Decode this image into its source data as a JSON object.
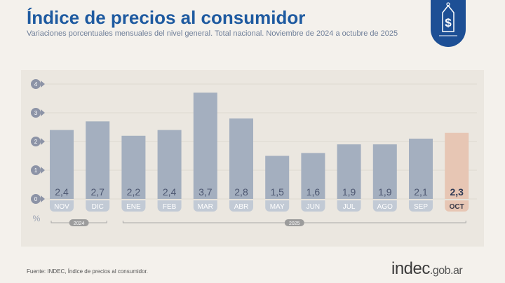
{
  "header": {
    "title": "Índice de precios al consumidor",
    "subtitle": "Variaciones porcentuales mensuales del nivel general. Total nacional. Noviembre de 2024 a octubre de 2025"
  },
  "badge": {
    "icon": "price-tag-dollar-icon",
    "color": "#1d4f95"
  },
  "chart_data": {
    "type": "bar",
    "categories": [
      "NOV",
      "DIC",
      "ENE",
      "FEB",
      "MAR",
      "ABR",
      "MAY",
      "JUN",
      "JUL",
      "AGO",
      "SEP",
      "OCT"
    ],
    "values": [
      2.4,
      2.7,
      2.2,
      2.4,
      3.7,
      2.8,
      1.5,
      1.6,
      1.9,
      1.9,
      2.1,
      2.3
    ],
    "data_labels": [
      "2,4",
      "2,7",
      "2,2",
      "2,4",
      "3,7",
      "2,8",
      "1,5",
      "1,6",
      "1,9",
      "1,9",
      "2,1",
      "2,3"
    ],
    "yticks": [
      "0",
      "1",
      "2",
      "3",
      "4"
    ],
    "ylim": [
      0,
      4
    ],
    "ylabel": "%",
    "year_groups": [
      {
        "label": "2024",
        "from": 0,
        "to": 1
      },
      {
        "label": "2025",
        "from": 2,
        "to": 11
      }
    ],
    "grid": true,
    "colors": {
      "bar": "#a4afbf",
      "highlight": "#e7c6b4",
      "label_pill": "#c2cad5",
      "highlight_pill": "#e7c6b4",
      "tick_marker": "#8c93a6"
    }
  },
  "footer": {
    "source": "Fuente: INDEC, Índice de precios al consumidor.",
    "logo_main": "indec",
    "logo_suffix": ".gob.ar"
  }
}
